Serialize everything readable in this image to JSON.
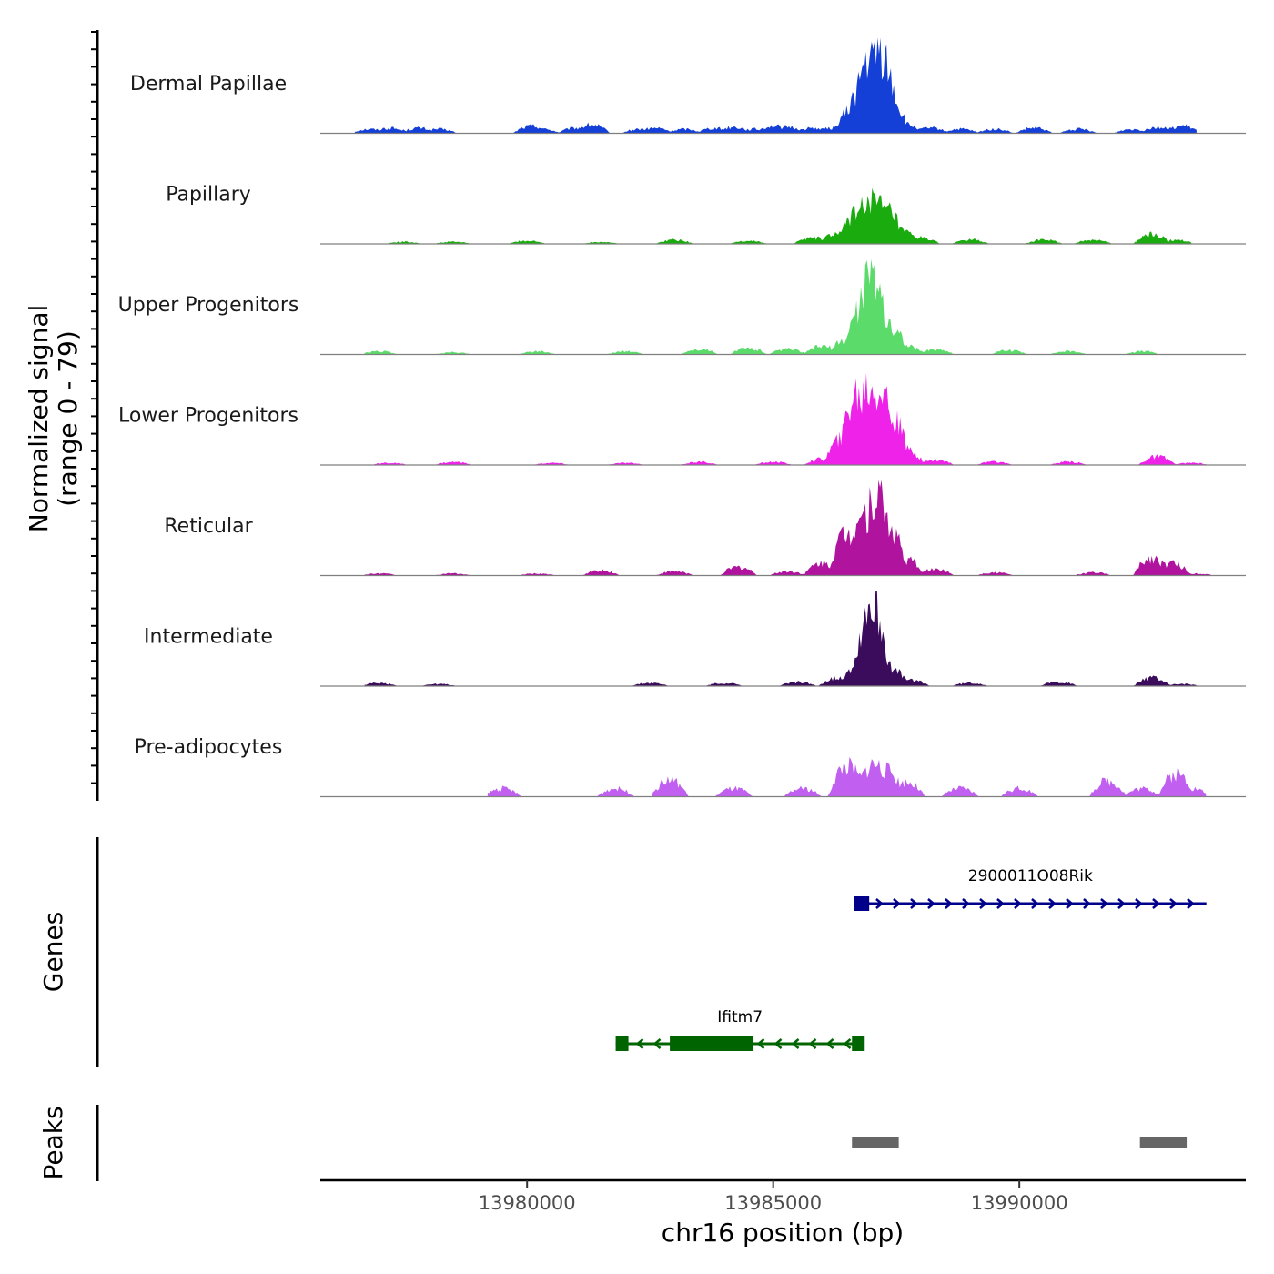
{
  "chart_data": {
    "type": "area",
    "title": "",
    "chromosome": "chr16",
    "xlabel": "chr16 position (bp)",
    "ylabel": "Normalized signal",
    "ylabel_sub": "(range 0 - 79)",
    "xlim": [
      13975800,
      13994600
    ],
    "ylim": [
      0,
      79
    ],
    "x_ticks": [
      13980000,
      13985000,
      13990000
    ],
    "x_tick_labels": [
      "13980000",
      "13985000",
      "13990000"
    ],
    "series": [
      {
        "name": "Dermal Papillae",
        "color": "#1440d8",
        "profile": [
          {
            "x": 13976800,
            "y": 4
          },
          {
            "x": 13977200,
            "y": 5
          },
          {
            "x": 13977500,
            "y": 3
          },
          {
            "x": 13977800,
            "y": 5
          },
          {
            "x": 13978200,
            "y": 4
          },
          {
            "x": 13980100,
            "y": 7
          },
          {
            "x": 13980300,
            "y": 4
          },
          {
            "x": 13981000,
            "y": 5
          },
          {
            "x": 13981300,
            "y": 8
          },
          {
            "x": 13982300,
            "y": 4
          },
          {
            "x": 13982600,
            "y": 5
          },
          {
            "x": 13983200,
            "y": 4
          },
          {
            "x": 13983800,
            "y": 5
          },
          {
            "x": 13984200,
            "y": 6
          },
          {
            "x": 13984600,
            "y": 4
          },
          {
            "x": 13985000,
            "y": 7
          },
          {
            "x": 13985300,
            "y": 6
          },
          {
            "x": 13985800,
            "y": 5
          },
          {
            "x": 13986200,
            "y": 5
          },
          {
            "x": 13986600,
            "y": 22
          },
          {
            "x": 13986800,
            "y": 45
          },
          {
            "x": 13986950,
            "y": 70
          },
          {
            "x": 13987050,
            "y": 55
          },
          {
            "x": 13987150,
            "y": 79
          },
          {
            "x": 13987250,
            "y": 60
          },
          {
            "x": 13987400,
            "y": 28
          },
          {
            "x": 13987700,
            "y": 8
          },
          {
            "x": 13988200,
            "y": 5
          },
          {
            "x": 13988800,
            "y": 4
          },
          {
            "x": 13989500,
            "y": 4
          },
          {
            "x": 13990300,
            "y": 5
          },
          {
            "x": 13991200,
            "y": 4
          },
          {
            "x": 13992300,
            "y": 4
          },
          {
            "x": 13992800,
            "y": 6
          },
          {
            "x": 13993300,
            "y": 7
          }
        ]
      },
      {
        "name": "Papillary",
        "color": "#1aab0e",
        "profile": [
          {
            "x": 13977500,
            "y": 2
          },
          {
            "x": 13978500,
            "y": 2
          },
          {
            "x": 13980000,
            "y": 3
          },
          {
            "x": 13981500,
            "y": 2
          },
          {
            "x": 13983000,
            "y": 4
          },
          {
            "x": 13984500,
            "y": 3
          },
          {
            "x": 13985800,
            "y": 6
          },
          {
            "x": 13986300,
            "y": 10
          },
          {
            "x": 13986700,
            "y": 30
          },
          {
            "x": 13986950,
            "y": 45
          },
          {
            "x": 13987100,
            "y": 38
          },
          {
            "x": 13987300,
            "y": 32
          },
          {
            "x": 13987600,
            "y": 12
          },
          {
            "x": 13988000,
            "y": 6
          },
          {
            "x": 13989000,
            "y": 4
          },
          {
            "x": 13990500,
            "y": 4
          },
          {
            "x": 13991500,
            "y": 4
          },
          {
            "x": 13992700,
            "y": 9
          },
          {
            "x": 13993200,
            "y": 4
          }
        ]
      },
      {
        "name": "Upper Progenitors",
        "color": "#5bdb6a",
        "profile": [
          {
            "x": 13977000,
            "y": 3
          },
          {
            "x": 13978500,
            "y": 2
          },
          {
            "x": 13980200,
            "y": 3
          },
          {
            "x": 13982000,
            "y": 3
          },
          {
            "x": 13983500,
            "y": 5
          },
          {
            "x": 13984500,
            "y": 6
          },
          {
            "x": 13985300,
            "y": 5
          },
          {
            "x": 13986000,
            "y": 8
          },
          {
            "x": 13986500,
            "y": 14
          },
          {
            "x": 13986800,
            "y": 45
          },
          {
            "x": 13987000,
            "y": 79
          },
          {
            "x": 13987150,
            "y": 40
          },
          {
            "x": 13987400,
            "y": 25
          },
          {
            "x": 13987700,
            "y": 8
          },
          {
            "x": 13988300,
            "y": 5
          },
          {
            "x": 13989800,
            "y": 4
          },
          {
            "x": 13991000,
            "y": 3
          },
          {
            "x": 13992500,
            "y": 3
          }
        ]
      },
      {
        "name": "Lower Progenitors",
        "color": "#ee22e8",
        "profile": [
          {
            "x": 13977200,
            "y": 2
          },
          {
            "x": 13978500,
            "y": 3
          },
          {
            "x": 13980500,
            "y": 2
          },
          {
            "x": 13982000,
            "y": 2
          },
          {
            "x": 13983500,
            "y": 3
          },
          {
            "x": 13985000,
            "y": 3
          },
          {
            "x": 13986000,
            "y": 6
          },
          {
            "x": 13986400,
            "y": 25
          },
          {
            "x": 13986700,
            "y": 70
          },
          {
            "x": 13986950,
            "y": 79
          },
          {
            "x": 13987150,
            "y": 78
          },
          {
            "x": 13987400,
            "y": 45
          },
          {
            "x": 13987700,
            "y": 15
          },
          {
            "x": 13988300,
            "y": 5
          },
          {
            "x": 13989500,
            "y": 3
          },
          {
            "x": 13991000,
            "y": 3
          },
          {
            "x": 13992800,
            "y": 8
          },
          {
            "x": 13993500,
            "y": 2
          }
        ]
      },
      {
        "name": "Reticular",
        "color": "#b0149e",
        "profile": [
          {
            "x": 13977000,
            "y": 2
          },
          {
            "x": 13978500,
            "y": 2
          },
          {
            "x": 13980200,
            "y": 2
          },
          {
            "x": 13981500,
            "y": 5
          },
          {
            "x": 13983000,
            "y": 4
          },
          {
            "x": 13984300,
            "y": 8
          },
          {
            "x": 13985300,
            "y": 4
          },
          {
            "x": 13986000,
            "y": 12
          },
          {
            "x": 13986500,
            "y": 40
          },
          {
            "x": 13986800,
            "y": 60
          },
          {
            "x": 13987100,
            "y": 79
          },
          {
            "x": 13987350,
            "y": 45
          },
          {
            "x": 13987700,
            "y": 15
          },
          {
            "x": 13988300,
            "y": 6
          },
          {
            "x": 13989500,
            "y": 3
          },
          {
            "x": 13991500,
            "y": 3
          },
          {
            "x": 13992700,
            "y": 17
          },
          {
            "x": 13993100,
            "y": 12
          },
          {
            "x": 13993600,
            "y": 2
          }
        ]
      },
      {
        "name": "Intermediate",
        "color": "#3c0c5c",
        "profile": [
          {
            "x": 13977000,
            "y": 3
          },
          {
            "x": 13978200,
            "y": 2
          },
          {
            "x": 13982500,
            "y": 3
          },
          {
            "x": 13984000,
            "y": 3
          },
          {
            "x": 13985500,
            "y": 4
          },
          {
            "x": 13986300,
            "y": 8
          },
          {
            "x": 13986700,
            "y": 20
          },
          {
            "x": 13986900,
            "y": 40
          },
          {
            "x": 13987000,
            "y": 79
          },
          {
            "x": 13987150,
            "y": 35
          },
          {
            "x": 13987400,
            "y": 15
          },
          {
            "x": 13987800,
            "y": 6
          },
          {
            "x": 13989000,
            "y": 3
          },
          {
            "x": 13990800,
            "y": 4
          },
          {
            "x": 13992700,
            "y": 8
          },
          {
            "x": 13993300,
            "y": 2
          }
        ]
      },
      {
        "name": "Pre-adipocytes",
        "color": "#c05ff0",
        "profile": [
          {
            "x": 13979500,
            "y": 8
          },
          {
            "x": 13981800,
            "y": 8
          },
          {
            "x": 13982900,
            "y": 16
          },
          {
            "x": 13984200,
            "y": 8
          },
          {
            "x": 13985600,
            "y": 8
          },
          {
            "x": 13986500,
            "y": 30
          },
          {
            "x": 13986800,
            "y": 20
          },
          {
            "x": 13987050,
            "y": 32
          },
          {
            "x": 13987300,
            "y": 25
          },
          {
            "x": 13987700,
            "y": 14
          },
          {
            "x": 13988800,
            "y": 8
          },
          {
            "x": 13990000,
            "y": 8
          },
          {
            "x": 13991800,
            "y": 15
          },
          {
            "x": 13992500,
            "y": 8
          },
          {
            "x": 13993200,
            "y": 22
          },
          {
            "x": 13993500,
            "y": 8
          }
        ]
      }
    ],
    "genes_track": {
      "label": "Genes",
      "genes": [
        {
          "name": "2900011O08Rik",
          "strand": "+",
          "start": 13986650,
          "end": 13993800,
          "exons": [
            [
              13986650,
              13986950
            ]
          ],
          "color": "#00008b"
        },
        {
          "name": "Ifitm7",
          "strand": "-",
          "start": 13981800,
          "end": 13986850,
          "exons": [
            [
              13981800,
              13982050
            ],
            [
              13982900,
              13984600
            ],
            [
              13986600,
              13986850
            ]
          ],
          "color": "#006400"
        }
      ]
    },
    "peaks_track": {
      "label": "Peaks",
      "color": "#666666",
      "peaks": [
        [
          13986600,
          13987550
        ],
        [
          13992450,
          13993400
        ]
      ]
    }
  }
}
